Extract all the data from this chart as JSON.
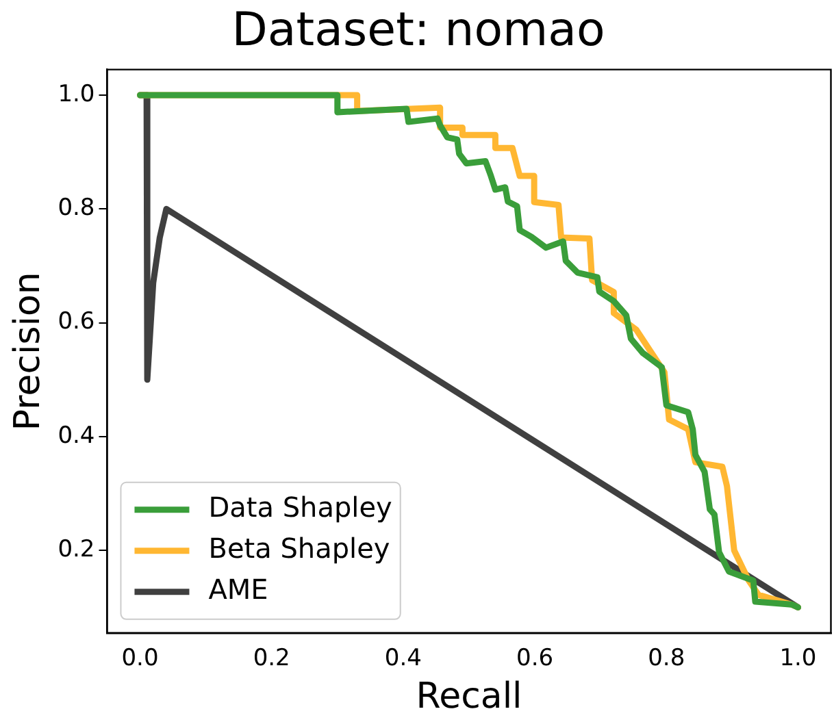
{
  "chart_data": {
    "type": "line",
    "title": "Dataset: nomao",
    "xlabel": "Recall",
    "ylabel": "Precision",
    "xlim": [
      -0.05,
      1.05
    ],
    "ylim": [
      0.055,
      1.045
    ],
    "xticks": [
      {
        "value": 0,
        "label": "0.0"
      },
      {
        "value": 0.2,
        "label": "0.2"
      },
      {
        "value": 0.4,
        "label": "0.4"
      },
      {
        "value": 0.6,
        "label": "0.6"
      },
      {
        "value": 0.8,
        "label": "0.8"
      },
      {
        "value": 1,
        "label": "1.0"
      }
    ],
    "yticks": [
      {
        "value": 0.2,
        "label": "0.2"
      },
      {
        "value": 0.4,
        "label": "0.4"
      },
      {
        "value": 0.6,
        "label": "0.6"
      },
      {
        "value": 0.8,
        "label": "0.8"
      },
      {
        "value": 1,
        "label": "1.0"
      }
    ],
    "grid": false,
    "legend": "bottom left",
    "marker": "none",
    "line_style": "solid",
    "series": [
      {
        "name": "Data Shapley",
        "color": "#3a9e3a",
        "x": [
          0,
          0.3,
          0.3,
          0.405,
          0.408,
          0.452,
          0.456,
          0.467,
          0.482,
          0.485,
          0.496,
          0.525,
          0.533,
          0.54,
          0.555,
          0.559,
          0.573,
          0.577,
          0.595,
          0.617,
          0.643,
          0.647,
          0.665,
          0.695,
          0.698,
          0.72,
          0.739,
          0.746,
          0.764,
          0.793,
          0.8,
          0.833,
          0.84,
          0.844,
          0.858,
          0.866,
          0.873,
          0.88,
          0.895,
          0.932,
          0.935,
          0.99,
          1.0
        ],
        "values": [
          1.0,
          1.0,
          0.97,
          0.976,
          0.953,
          0.959,
          0.947,
          0.926,
          0.922,
          0.897,
          0.88,
          0.884,
          0.859,
          0.834,
          0.838,
          0.813,
          0.805,
          0.763,
          0.751,
          0.732,
          0.743,
          0.709,
          0.688,
          0.68,
          0.655,
          0.638,
          0.613,
          0.572,
          0.547,
          0.522,
          0.455,
          0.443,
          0.413,
          0.368,
          0.338,
          0.272,
          0.263,
          0.197,
          0.163,
          0.147,
          0.11,
          0.105,
          0.1
        ]
      },
      {
        "name": "Beta Shapley",
        "color": "#ffb732",
        "x": [
          0,
          0.33,
          0.33,
          0.456,
          0.456,
          0.49,
          0.49,
          0.54,
          0.54,
          0.566,
          0.577,
          0.599,
          0.599,
          0.636,
          0.64,
          0.683,
          0.687,
          0.72,
          0.72,
          0.754,
          0.797,
          0.804,
          0.833,
          0.844,
          0.885,
          0.892,
          0.903,
          0.925,
          0.94,
          0.99,
          1.0
        ],
        "values": [
          1.0,
          1.0,
          0.972,
          0.978,
          0.943,
          0.943,
          0.93,
          0.93,
          0.907,
          0.907,
          0.858,
          0.858,
          0.812,
          0.807,
          0.75,
          0.748,
          0.675,
          0.654,
          0.617,
          0.588,
          0.513,
          0.43,
          0.413,
          0.355,
          0.347,
          0.313,
          0.2,
          0.147,
          0.122,
          0.105,
          0.1
        ]
      },
      {
        "name": "AME",
        "color": "#404040",
        "x": [
          0,
          0.01,
          0.011,
          0.02,
          0.03,
          0.04,
          1.0
        ],
        "values": [
          1.0,
          1.0,
          0.5,
          0.67,
          0.75,
          0.8,
          0.1
        ]
      }
    ]
  }
}
